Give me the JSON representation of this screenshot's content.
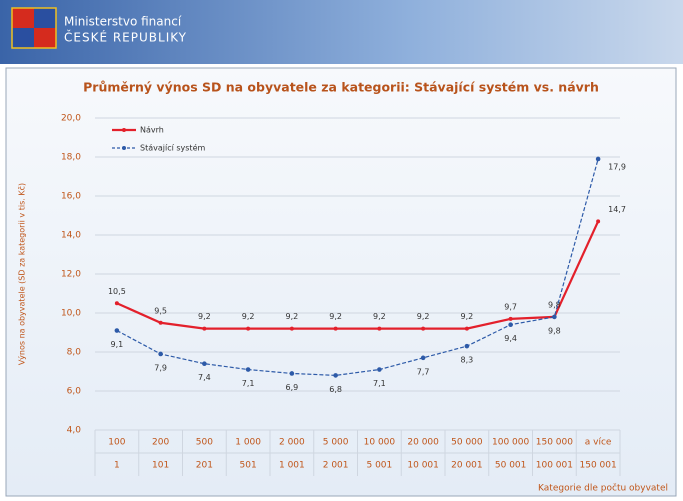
{
  "header": {
    "ministry": "Ministerstvo financí",
    "country": "ČESKÉ REPUBLIKY"
  },
  "chart_data": {
    "type": "line",
    "title": "Průměrný výnos SD na obyvatele za kategorii: Stávající systém vs. návrh",
    "y_label": "Výnos na obyvatele (SD za kategorii v tis. Kč)",
    "x_label": "Kategorie dle počtu obyvatel",
    "categories": [
      [
        "100",
        "1"
      ],
      [
        "200",
        "101"
      ],
      [
        "500",
        "201"
      ],
      [
        "1 000",
        "501"
      ],
      [
        "2 000",
        "1 001"
      ],
      [
        "5 000",
        "2 001"
      ],
      [
        "10 000",
        "5 001"
      ],
      [
        "20 000",
        "10 001"
      ],
      [
        "50 000",
        "20 001"
      ],
      [
        "100 000",
        "50 001"
      ],
      [
        "150 000",
        "100 001"
      ],
      [
        "a více",
        "150 001"
      ]
    ],
    "series": [
      {
        "name": "Návrh",
        "color": "#e3202b",
        "dashed": false,
        "values": [
          10.5,
          9.5,
          9.2,
          9.2,
          9.2,
          9.2,
          9.2,
          9.2,
          9.2,
          9.7,
          9.8,
          14.7
        ],
        "value_labels": [
          "10,5",
          "9,5",
          "9,2",
          "9,2",
          "9,2",
          "9,2",
          "9,2",
          "9,2",
          "9,2",
          "9,7",
          "9,8",
          "14,7"
        ]
      },
      {
        "name": "Stávající systém",
        "color": "#2d5aa8",
        "dashed": true,
        "values": [
          9.1,
          7.9,
          7.4,
          7.1,
          6.9,
          6.8,
          7.1,
          7.7,
          8.3,
          9.4,
          9.8,
          17.9
        ],
        "value_labels": [
          "9,1",
          "7,9",
          "7,4",
          "7,1",
          "6,9",
          "6,8",
          "7,1",
          "7,7",
          "8,3",
          "9,4",
          "9,8",
          "17,9"
        ]
      }
    ],
    "ylim": [
      4,
      20
    ],
    "yticks": [
      {
        "value": 4,
        "label": "4,0"
      },
      {
        "value": 6,
        "label": "6,0"
      },
      {
        "value": 8,
        "label": "8,0"
      },
      {
        "value": 10,
        "label": "10,0"
      },
      {
        "value": 12,
        "label": "12,0"
      },
      {
        "value": 14,
        "label": "14,0"
      },
      {
        "value": 16,
        "label": "16,0"
      },
      {
        "value": 18,
        "label": "18,0"
      },
      {
        "value": 20,
        "label": "20,0"
      }
    ],
    "grid": true
  }
}
